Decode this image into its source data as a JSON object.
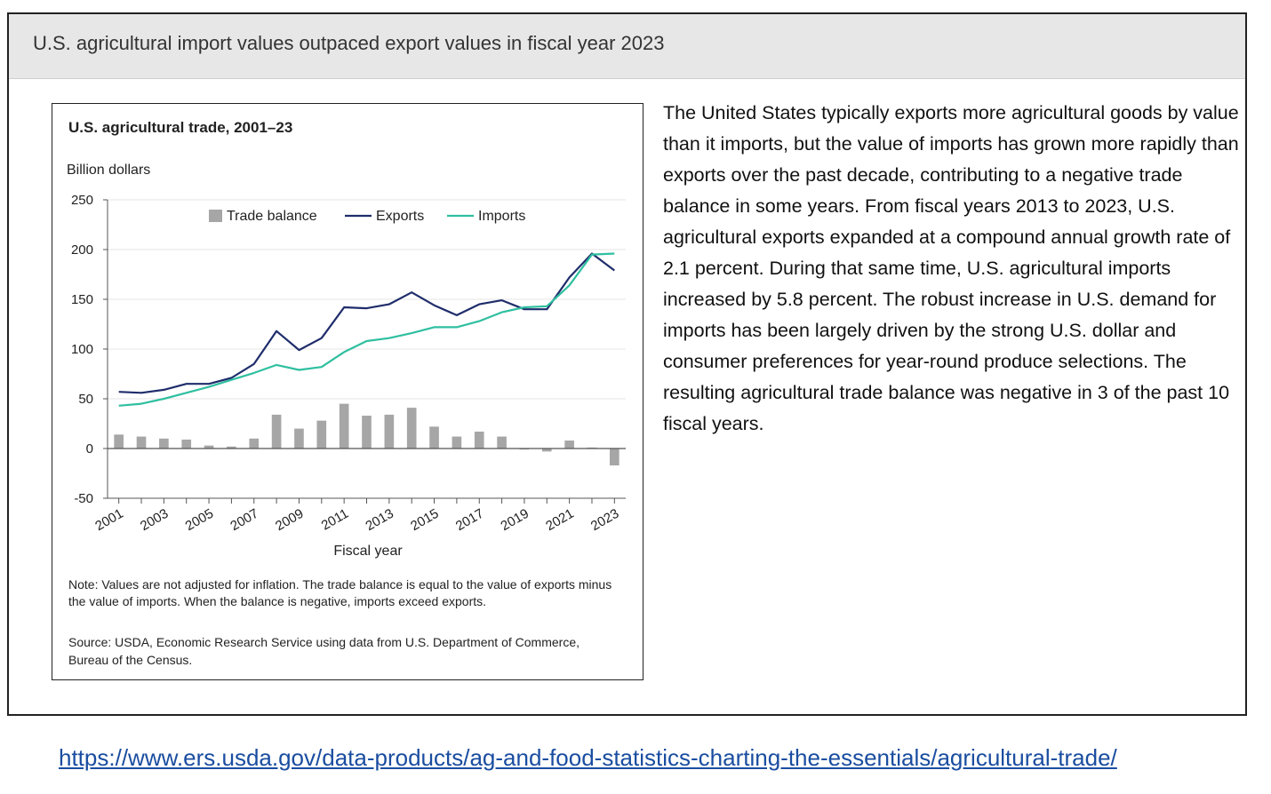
{
  "slide": {
    "title": "U.S. agricultural import values outpaced export values in fiscal year 2023",
    "body": "The United States typically exports more agricultural goods by value than it imports, but the value of imports has grown more rapidly than exports over the past decade, contributing to a negative trade balance in some years. From fiscal years 2013 to 2023, U.S. agricultural exports expanded at a compound annual growth rate of 2.1 percent. During that same time, U.S. agricultural imports increased by 5.8 percent. The robust increase in U.S. demand for imports has been largely driven by the strong U.S. dollar and consumer preferences for year-round produce selections. The resulting agricultural trade balance was negative in 3 of the past 10 fiscal years.",
    "link": "https://www.ers.usda.gov/data-products/ag-and-food-statistics-charting-the-essentials/agricultural-trade/"
  },
  "colors": {
    "exports": "#1f2d6b",
    "imports": "#2fbfa0",
    "balance": "#a6a6a6",
    "link": "#1a4da0"
  },
  "chart_data": {
    "type": "bar",
    "title": "U.S. agricultural trade, 2001–23",
    "ylabel": "Billion dollars",
    "xlabel": "Fiscal year",
    "ylim": [
      -50,
      250
    ],
    "yticks": [
      250,
      200,
      150,
      100,
      50,
      0,
      -50
    ],
    "x": [
      2001,
      2002,
      2003,
      2004,
      2005,
      2006,
      2007,
      2008,
      2009,
      2010,
      2011,
      2012,
      2013,
      2014,
      2015,
      2016,
      2017,
      2018,
      2019,
      2020,
      2021,
      2022,
      2023
    ],
    "xtick_labels": [
      "2001",
      "2003",
      "2005",
      "2007",
      "2009",
      "2011",
      "2013",
      "2015",
      "2017",
      "2019",
      "2021",
      "2023"
    ],
    "legend_position": "top",
    "series": [
      {
        "name": "Trade balance",
        "kind": "bar",
        "values": [
          14,
          12,
          10,
          9,
          3,
          2,
          10,
          34,
          20,
          28,
          45,
          33,
          34,
          41,
          22,
          12,
          17,
          12,
          -1,
          -3,
          8,
          1,
          -17
        ]
      },
      {
        "name": "Exports",
        "kind": "line",
        "values": [
          57,
          56,
          59,
          65,
          65,
          71,
          85,
          118,
          99,
          111,
          142,
          141,
          145,
          157,
          144,
          134,
          145,
          149,
          140,
          140,
          172,
          196,
          179
        ]
      },
      {
        "name": "Imports",
        "kind": "line",
        "values": [
          43,
          45,
          50,
          56,
          62,
          69,
          76,
          84,
          79,
          82,
          97,
          108,
          111,
          116,
          122,
          122,
          128,
          137,
          142,
          143,
          164,
          195,
          196
        ]
      }
    ],
    "note": "Note: Values are not adjusted for inflation. The trade balance is equal to the value of exports minus the value of imports. When the balance is negative, imports exceed exports.",
    "source": "Source: USDA, Economic Research Service using data from U.S. Department of Commerce, Bureau of the Census."
  }
}
